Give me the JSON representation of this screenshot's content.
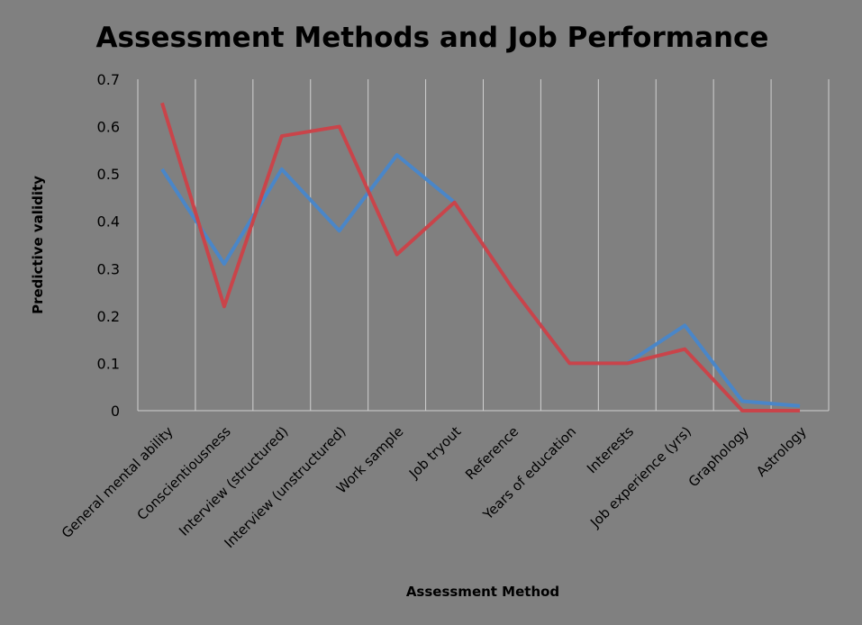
{
  "chart_data": {
    "type": "line",
    "title": "Assessment Methods and Job Performance",
    "xlabel": "Assessment Method",
    "ylabel": "Predictive validity",
    "ylim": [
      0,
      0.7
    ],
    "yticks": [
      "0",
      "0.1",
      "0.2",
      "0.3",
      "0.4",
      "0.5",
      "0.6",
      "0.7"
    ],
    "grid": "vertical",
    "legend": "none",
    "categories": [
      "General mental ability",
      "Conscientiousness",
      "Interview (structured)",
      "Interview (unstructured)",
      "Work sample",
      "Job tryout",
      "Reference",
      "Years of education",
      "Interests",
      "Job experience (yrs)",
      "Graphology",
      "Astrology"
    ],
    "series": [
      {
        "color": "#4a86c8",
        "values": [
          0.51,
          0.31,
          0.51,
          0.38,
          0.54,
          0.44,
          0.26,
          0.1,
          0.1,
          0.18,
          0.02,
          0.01
        ]
      },
      {
        "color": "#c9444a",
        "values": [
          0.65,
          0.22,
          0.58,
          0.6,
          0.33,
          0.44,
          0.26,
          0.1,
          0.1,
          0.13,
          0.0,
          0.0
        ]
      }
    ]
  }
}
